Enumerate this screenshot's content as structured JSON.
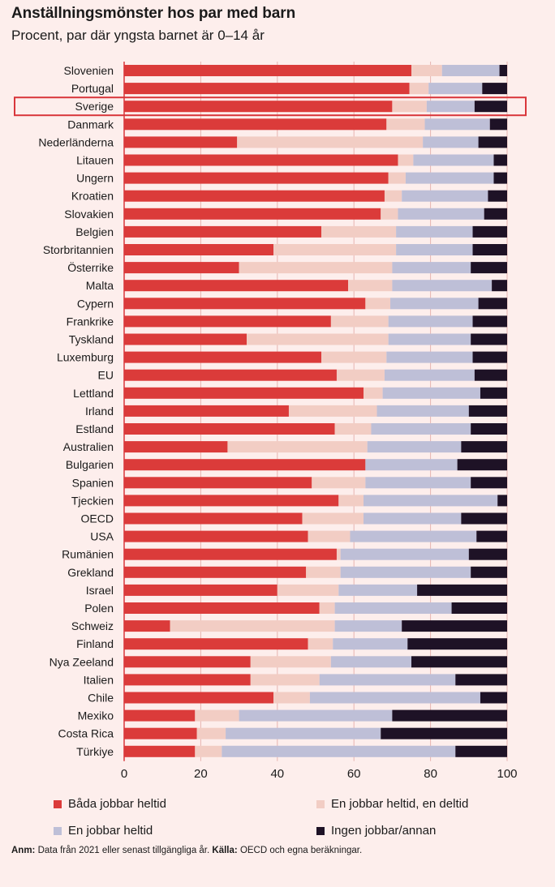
{
  "title": "Anställningsmönster hos par med barn",
  "subtitle": "Procent, par där yngsta barnet är 0–14 år",
  "note": {
    "anm_label": "Anm:",
    "anm_text": "Data från 2021 eller senast tillgängliga år.",
    "source_label": "Källa:",
    "source_text": "OECD och egna beräkningar."
  },
  "colors": {
    "background": "#fdeeec",
    "both_fulltime": "#db3b3a",
    "full_part": "#f2cdc4",
    "one_fulltime": "#bebfd7",
    "none": "#1e1226",
    "highlight": "#d9363b",
    "grid": "#e7b4b0"
  },
  "chart_data": {
    "type": "bar",
    "orientation": "horizontal",
    "stacked": true,
    "title": "Anställningsmönster hos par med barn",
    "subtitle": "Procent, par där yngsta barnet är 0–14 år",
    "xlabel": "",
    "ylabel": "",
    "xlim": [
      0,
      100
    ],
    "xticks": [
      0,
      20,
      40,
      60,
      80,
      100
    ],
    "grid": true,
    "highlight": "Sverige",
    "legend_position": "bottom",
    "categories": [
      "Slovenien",
      "Portugal",
      "Sverige",
      "Danmark",
      "Nederländerna",
      "Litauen",
      "Ungern",
      "Kroatien",
      "Slovakien",
      "Belgien",
      "Storbritannien",
      "Österrike",
      "Malta",
      "Cypern",
      "Frankrike",
      "Tyskland",
      "Luxemburg",
      "EU",
      "Lettland",
      "Irland",
      "Estland",
      "Australien",
      "Bulgarien",
      "Spanien",
      "Tjeckien",
      "OECD",
      "USA",
      "Rumänien",
      "Grekland",
      "Israel",
      "Polen",
      "Schweiz",
      "Finland",
      "Nya Zeeland",
      "Italien",
      "Chile",
      "Mexiko",
      "Costa Rica",
      "Türkiye"
    ],
    "series": [
      {
        "name": "Båda jobbar heltid",
        "key": "both_fulltime",
        "values": [
          75,
          74.5,
          70,
          68.5,
          29.5,
          71.5,
          69,
          68,
          67,
          51.5,
          39,
          30,
          58.5,
          63,
          54,
          32,
          51.5,
          55.5,
          62.5,
          43,
          55,
          27,
          63,
          49,
          56,
          46.5,
          48,
          55.5,
          47.5,
          40,
          51,
          12,
          48,
          33,
          33,
          39,
          18.5,
          19,
          18.5
        ]
      },
      {
        "name": "En jobbar heltid, en deltid",
        "key": "full_part",
        "values": [
          8,
          5,
          9,
          10,
          48.5,
          4,
          4.5,
          4.5,
          4.5,
          19.5,
          32,
          40,
          11.5,
          6.5,
          15,
          37,
          17,
          12.5,
          5,
          23,
          9.5,
          36.5,
          0,
          14,
          6.5,
          16,
          11,
          1,
          9,
          16,
          4,
          43,
          6.5,
          21,
          18,
          9.5,
          11.5,
          7.5,
          7
        ]
      },
      {
        "name": "En jobbar heltid",
        "key": "one_fulltime",
        "values": [
          15,
          14,
          12.5,
          17,
          14.5,
          21,
          23,
          22.5,
          22.5,
          20,
          20,
          20.5,
          26,
          23,
          22,
          21.5,
          22.5,
          23.5,
          25.5,
          24,
          26,
          24.5,
          24,
          27.5,
          35,
          25.5,
          33,
          33.5,
          34,
          20.5,
          30.5,
          17.5,
          19.5,
          21,
          35.5,
          44.5,
          40,
          40.5,
          61
        ]
      },
      {
        "name": "Ingen jobbar/annan",
        "key": "none",
        "values": [
          2,
          6.5,
          8.5,
          4.5,
          7.5,
          3.5,
          3.5,
          5,
          6,
          9,
          9,
          9.5,
          4,
          7.5,
          9,
          9.5,
          9,
          8.5,
          7,
          10,
          9.5,
          12,
          13,
          9.5,
          2.5,
          12,
          8,
          10,
          9.5,
          23.5,
          14.5,
          27.5,
          26,
          25,
          13.5,
          7,
          30,
          33,
          13.5
        ]
      }
    ]
  }
}
